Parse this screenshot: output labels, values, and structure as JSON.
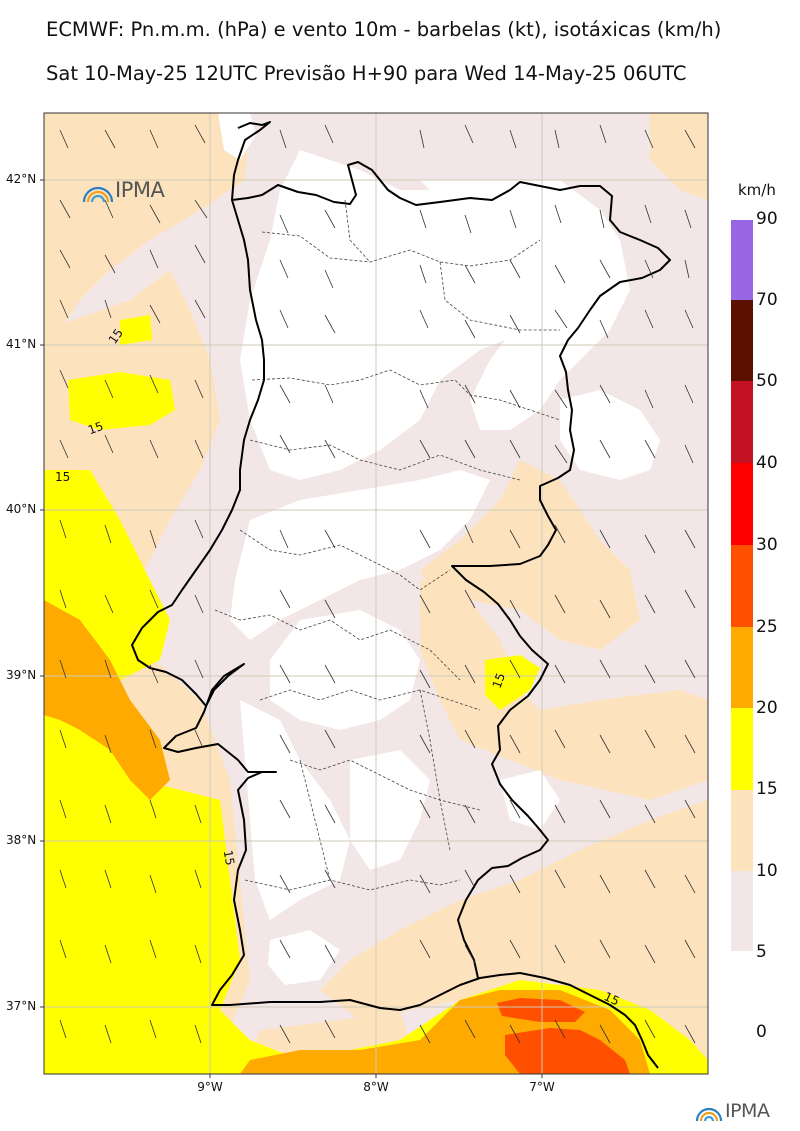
{
  "title_line1": "ECMWF: Pn.m.m. (hPa) e vento 10m - barbelas (kt), isotáxicas (km/h)",
  "title_line2": "Sat 10-May-25 12UTC Previsão H+90 para Wed 14-May-25 06UTC",
  "latitude_labels": [
    "42°N",
    "41°N",
    "40°N",
    "39°N",
    "38°N",
    "37°N"
  ],
  "longitude_labels": [
    "9°W",
    "8°W",
    "7°W"
  ],
  "colorbar": {
    "unit": "km/h",
    "labels": [
      "90",
      "70",
      "50",
      "40",
      "30",
      "25",
      "20",
      "15",
      "10",
      "5",
      "0"
    ],
    "colors": [
      "#9966e6",
      "#5c1100",
      "#c41224",
      "#ff0000",
      "#ff5000",
      "#ffaa00",
      "#ffff00",
      "#fde3bd",
      "#f3e6e6"
    ]
  },
  "contour_label": "15",
  "logo_text": "IPMA",
  "colors": {
    "land_line": "#000000",
    "district_line": "#444444",
    "grid_line": "#cfc9b8",
    "band_5_10": "#f3e6e6",
    "band_10_15": "#fde3bd",
    "band_15_20": "#ffff00",
    "band_20_25": "#ffaa00",
    "band_25_30": "#ff5000"
  }
}
